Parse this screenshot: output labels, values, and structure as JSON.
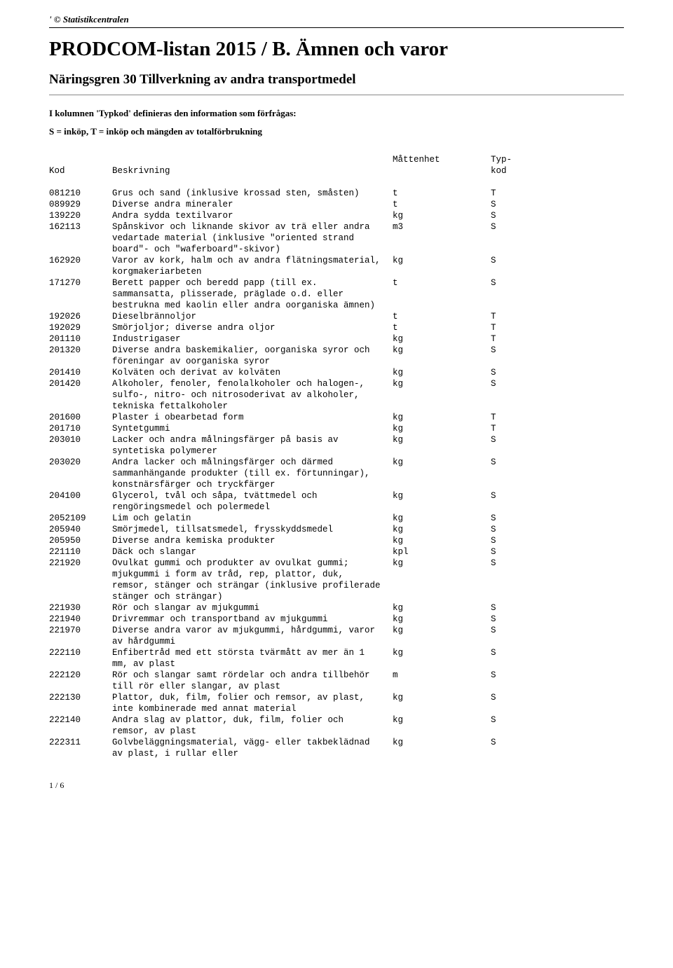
{
  "copyright": "' © Statistikcentralen",
  "main_title": "PRODCOM-listan 2015 / B. Ämnen och varor",
  "sub_title": "Näringsgren 30 Tillverkning av andra transportmedel",
  "intro_line": "I kolumnen 'Typkod' definieras den information som förfrågas:",
  "intro_line2": "S = inköp, T = inköp och mängden av totalförbrukning",
  "headers": {
    "kod": "Kod",
    "beskrivning": "Beskrivning",
    "matt_l1": "Måttenhet",
    "typ_l1": "Typ-",
    "typ_l2": "kod"
  },
  "rows": [
    {
      "kod": "081210",
      "desc": "Grus och sand (inklusive krossad sten, småsten)",
      "unit": "t",
      "typ": "T"
    },
    {
      "kod": "089929",
      "desc": "Diverse andra mineraler",
      "unit": "t",
      "typ": "S"
    },
    {
      "kod": "139220",
      "desc": "Andra sydda textilvaror",
      "unit": "kg",
      "typ": "S"
    },
    {
      "kod": "162113",
      "desc": "Spånskivor och liknande skivor av trä eller andra vedartade material (inklusive \"oriented strand board\"- och \"waferboard\"-skivor)",
      "unit": "m3",
      "typ": "S"
    },
    {
      "kod": "162920",
      "desc": "Varor av kork, halm och av andra flätningsmaterial, korgmakeriarbeten",
      "unit": "kg",
      "typ": "S"
    },
    {
      "kod": "171270",
      "desc": "Berett papper och beredd papp (till ex. sammansatta, plisserade, präglade o.d. eller bestrukna med kaolin eller andra oorganiska ämnen)",
      "unit": "t",
      "typ": "S"
    },
    {
      "kod": "192026",
      "desc": "Dieselbrännoljor",
      "unit": "t",
      "typ": "T"
    },
    {
      "kod": "192029",
      "desc": "Smörjoljor; diverse andra oljor",
      "unit": "t",
      "typ": "T"
    },
    {
      "kod": "201110",
      "desc": "Industrigaser",
      "unit": "kg",
      "typ": "T"
    },
    {
      "kod": "201320",
      "desc": "Diverse andra baskemikalier, oorganiska syror och föreningar av oorganiska syror",
      "unit": "kg",
      "typ": "S"
    },
    {
      "kod": "201410",
      "desc": "Kolväten och derivat av kolväten",
      "unit": "kg",
      "typ": "S"
    },
    {
      "kod": "201420",
      "desc": "Alkoholer, fenoler, fenolalkoholer och halogen-, sulfo-, nitro- och nitrosoderivat av alkoholer, tekniska fettalkoholer",
      "unit": "kg",
      "typ": "S"
    },
    {
      "kod": "201600",
      "desc": "Plaster i obearbetad form",
      "unit": "kg",
      "typ": "T"
    },
    {
      "kod": "201710",
      "desc": "Syntetgummi",
      "unit": "kg",
      "typ": "T"
    },
    {
      "kod": "203010",
      "desc": "Lacker och andra målningsfärger på basis av syntetiska polymerer",
      "unit": "kg",
      "typ": "S"
    },
    {
      "kod": "203020",
      "desc": "Andra lacker och målningsfärger och därmed sammanhängande produkter (till ex. förtunningar), konstnärsfärger och tryckfärger",
      "unit": "kg",
      "typ": "S"
    },
    {
      "kod": "204100",
      "desc": "Glycerol, tvål och såpa, tvättmedel och rengöringsmedel och polermedel",
      "unit": "kg",
      "typ": "S"
    },
    {
      "kod": "2052109",
      "desc": "Lim och gelatin",
      "unit": "kg",
      "typ": "S"
    },
    {
      "kod": "205940",
      "desc": "Smörjmedel, tillsatsmedel, frysskyddsmedel",
      "unit": "kg",
      "typ": "S"
    },
    {
      "kod": "205950",
      "desc": "Diverse andra kemiska produkter",
      "unit": "kg",
      "typ": "S"
    },
    {
      "kod": "221110",
      "desc": "Däck och slangar",
      "unit": "kpl",
      "typ": "S"
    },
    {
      "kod": "221920",
      "desc": "Ovulkat gummi och produkter av ovulkat gummi; mjukgummi i form av tråd, rep, plattor, duk, remsor, stänger och strängar (inklusive profilerade stänger och strängar)",
      "unit": "kg",
      "typ": "S"
    },
    {
      "kod": "221930",
      "desc": "Rör och slangar av mjukgummi",
      "unit": "kg",
      "typ": "S"
    },
    {
      "kod": "221940",
      "desc": "Drivremmar och transportband av mjukgummi",
      "unit": "kg",
      "typ": "S"
    },
    {
      "kod": "221970",
      "desc": "Diverse andra varor av mjukgummi, hårdgummi, varor av hårdgummi",
      "unit": "kg",
      "typ": "S"
    },
    {
      "kod": "222110",
      "desc": "Enfibertråd med ett största tvärmått av mer än 1 mm, av plast",
      "unit": "kg",
      "typ": "S"
    },
    {
      "kod": "222120",
      "desc": "Rör och slangar samt rördelar och andra tillbehör till rör eller slangar, av plast",
      "unit": "m",
      "typ": "S"
    },
    {
      "kod": "222130",
      "desc": "Plattor, duk, film, folier och remsor, av plast, inte kombinerade med annat material",
      "unit": "kg",
      "typ": "S"
    },
    {
      "kod": "222140",
      "desc": "Andra slag av plattor, duk, film, folier och remsor, av plast",
      "unit": "kg",
      "typ": "S"
    },
    {
      "kod": "222311",
      "desc": "Golvbeläggningsmaterial, vägg- eller takbeklädnad av plast, i rullar eller",
      "unit": "kg",
      "typ": "S"
    }
  ],
  "footer": "1 / 6",
  "colors": {
    "text": "#000000",
    "rule": "#000000",
    "subrule": "#888888",
    "background": "#ffffff"
  }
}
